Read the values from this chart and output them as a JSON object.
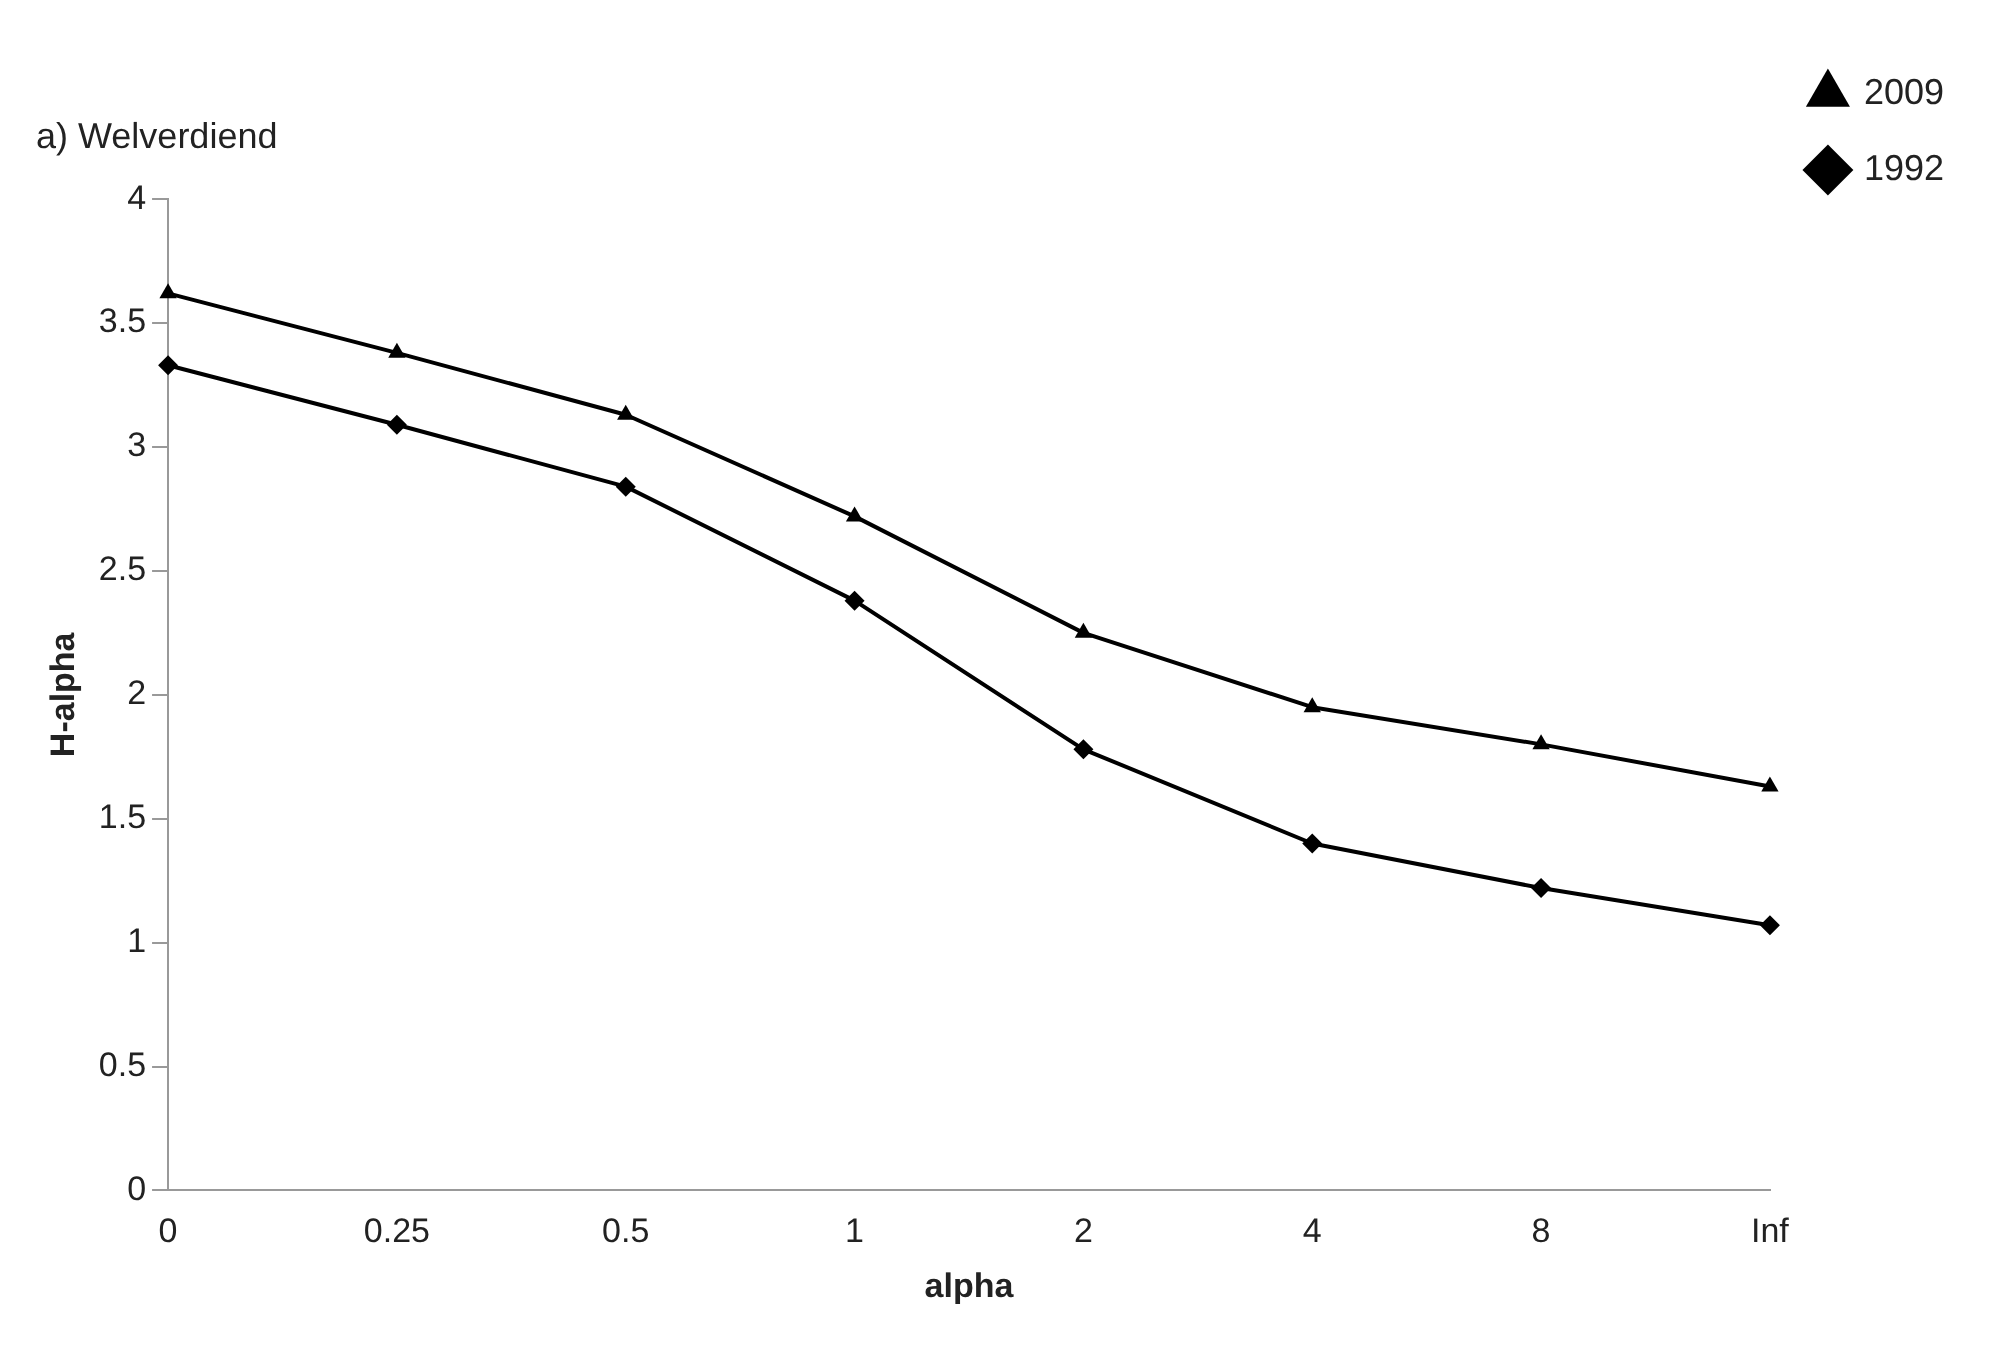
{
  "chart_data": {
    "type": "line",
    "title": "a) Welverdiend",
    "xlabel": "alpha",
    "ylabel": "H-alpha",
    "categories": [
      "0",
      "0.25",
      "0.5",
      "1",
      "2",
      "4",
      "8",
      "Inf"
    ],
    "series": [
      {
        "name": "2009",
        "color": "#000000",
        "marker": "triangle",
        "values": [
          3.62,
          3.38,
          3.13,
          2.72,
          2.25,
          1.95,
          1.8,
          1.63
        ]
      },
      {
        "name": "1992",
        "color": "#000000",
        "marker": "diamond",
        "values": [
          3.33,
          3.09,
          2.84,
          2.38,
          1.78,
          1.4,
          1.22,
          1.07
        ]
      }
    ],
    "ylim": [
      0,
      4
    ],
    "yticks": [
      0,
      0.5,
      1,
      1.5,
      2,
      2.5,
      3,
      3.5,
      4
    ],
    "grid": false,
    "legend": "top right",
    "line_style": "solid"
  }
}
